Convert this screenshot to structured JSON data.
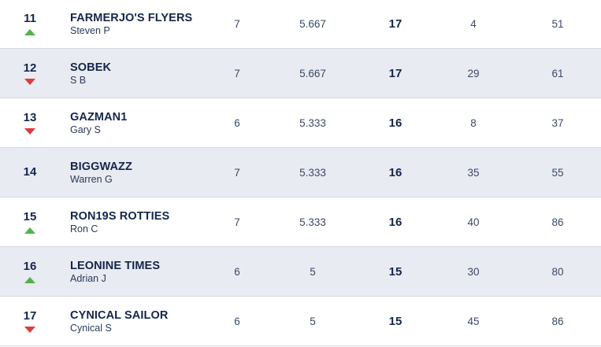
{
  "rows": [
    {
      "rank": "11",
      "movement": "up",
      "team": "FARMERJO'S FLYERS",
      "manager": "Steven P",
      "played": "7",
      "average": "5.667",
      "points": "17",
      "col_a": "4",
      "col_b": "51"
    },
    {
      "rank": "12",
      "movement": "down",
      "team": "SOBEK",
      "manager": "S B",
      "played": "7",
      "average": "5.667",
      "points": "17",
      "col_a": "29",
      "col_b": "61"
    },
    {
      "rank": "13",
      "movement": "down",
      "team": "GAZMAN1",
      "manager": "Gary S",
      "played": "6",
      "average": "5.333",
      "points": "16",
      "col_a": "8",
      "col_b": "37"
    },
    {
      "rank": "14",
      "movement": "none",
      "team": "BIGGWAZZ",
      "manager": "Warren G",
      "played": "7",
      "average": "5.333",
      "points": "16",
      "col_a": "35",
      "col_b": "55"
    },
    {
      "rank": "15",
      "movement": "up",
      "team": "RON19S ROTTIES",
      "manager": "Ron C",
      "played": "7",
      "average": "5.333",
      "points": "16",
      "col_a": "40",
      "col_b": "86"
    },
    {
      "rank": "16",
      "movement": "up",
      "team": "LEONINE TIMES",
      "manager": "Adrian J",
      "played": "6",
      "average": "5",
      "points": "15",
      "col_a": "30",
      "col_b": "80"
    },
    {
      "rank": "17",
      "movement": "down",
      "team": "CYNICAL SAILOR",
      "manager": "Cynical S",
      "played": "6",
      "average": "5",
      "points": "15",
      "col_a": "45",
      "col_b": "86"
    }
  ],
  "colors": {
    "up_arrow": "#4fb548",
    "down_arrow": "#e03a3e",
    "alt_row": "#e8ebf2",
    "text_dark": "#14264a"
  }
}
